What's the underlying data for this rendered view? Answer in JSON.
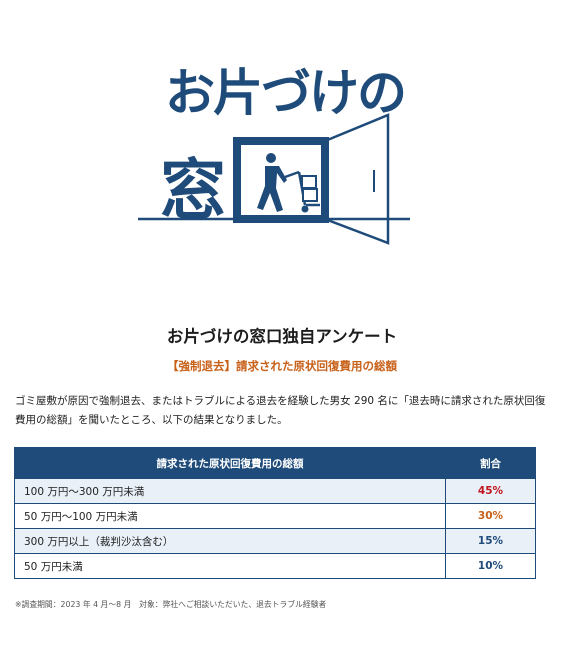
{
  "logo": {
    "line1": "お片づけの",
    "line2": "窓"
  },
  "colors": {
    "brand_navy": "#1f4b7a",
    "accent_orange": "#c8611a",
    "pct_red": "#c0161d",
    "pct_blue": "#1f4b7a"
  },
  "survey": {
    "title": "お片づけの窓口独自アンケート",
    "subtitle": "【強制退去】請求された原状回復費用の総額",
    "intro": "ゴミ屋敷が原因で強制退去、またはトラブルによる退去を経験した男女 290 名に「退去時に請求された原状回復費用の総額」を聞いたところ、以下の結果となりました。"
  },
  "table": {
    "headers": [
      "請求された原状回復費用の総額",
      "割合"
    ],
    "rows": [
      {
        "label": "100 万円〜300 万円未満",
        "pct": "45%",
        "color": "#c0161d"
      },
      {
        "label": "50 万円〜100 万円未満",
        "pct": "30%",
        "color": "#c8611a"
      },
      {
        "label": "300 万円以上（裁判沙汰含む）",
        "pct": "15%",
        "color": "#1f4b7a"
      },
      {
        "label": "50 万円未満",
        "pct": "10%",
        "color": "#1f4b7a"
      }
    ]
  },
  "footnote": "※調査期間：2023 年 4 月〜8 月　対象：弊社へご相談いただいた、退去トラブル経験者"
}
